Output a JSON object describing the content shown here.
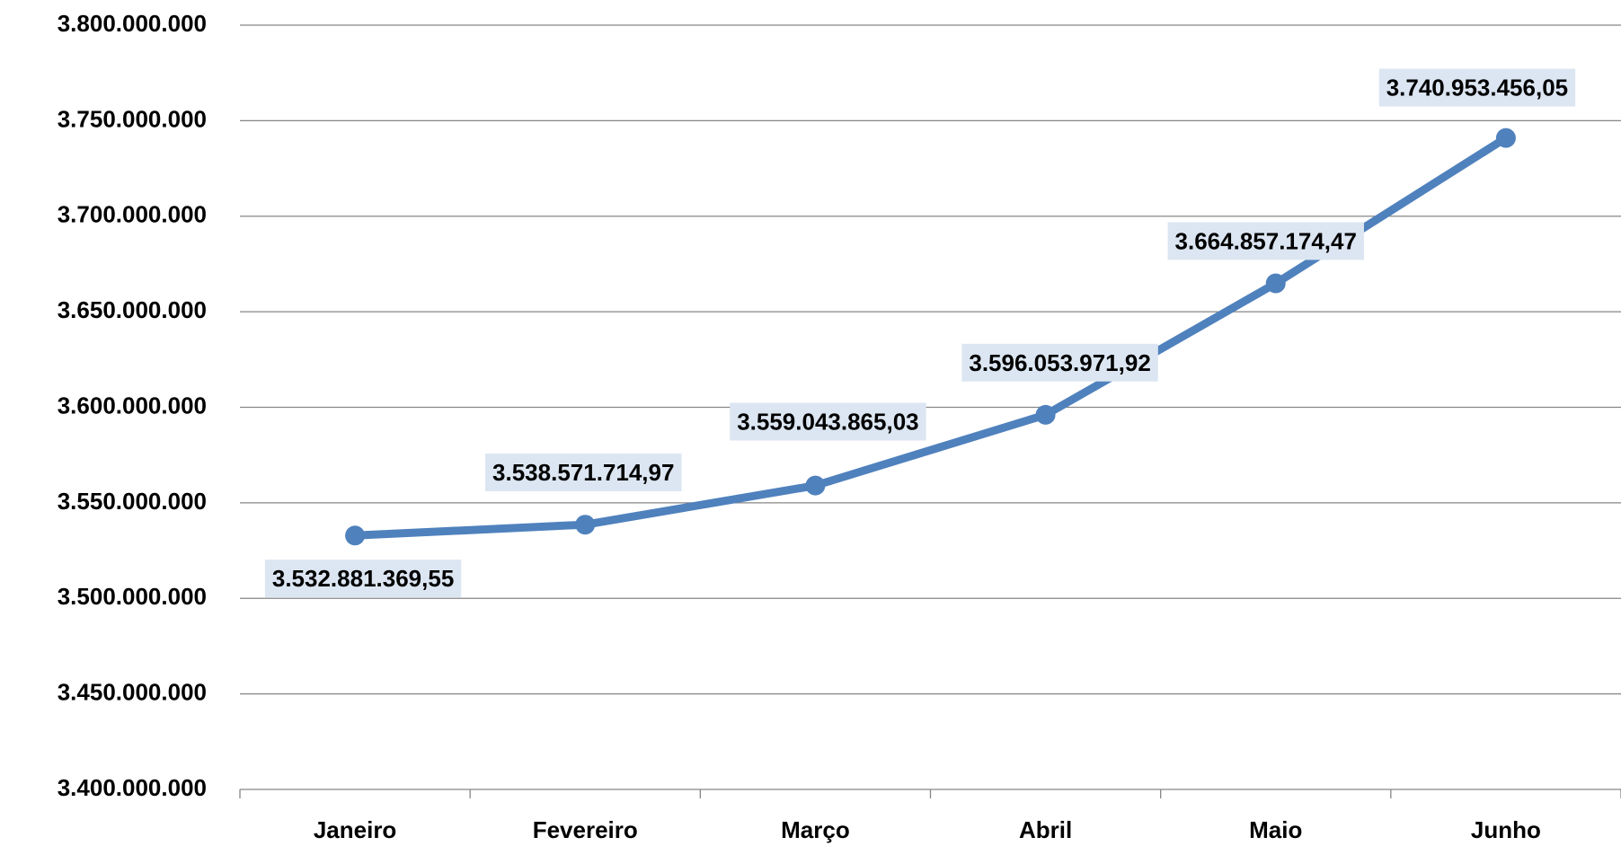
{
  "chart_data": {
    "type": "line",
    "categories": [
      "Janeiro",
      "Fevereiro",
      "Março",
      "Abril",
      "Maio",
      "Junho"
    ],
    "series": [
      {
        "color": "#4f81bd",
        "values": [
          3532881369.55,
          3538571714.97,
          3559043865.03,
          3596053971.92,
          3664857174.47,
          3740953456.05
        ],
        "value_labels": [
          "3.532.881.369,55",
          "3.538.571.714,97",
          "3.559.043.865,03",
          "3.596.053.971,92",
          "3.664.857.174,47",
          "3.740.953.456,05"
        ]
      }
    ],
    "ylim": [
      3400000000,
      3800000000
    ],
    "yticks": [
      {
        "value": 3400000000,
        "label": "3.400.000.000"
      },
      {
        "value": 3450000000,
        "label": "3.450.000.000"
      },
      {
        "value": 3500000000,
        "label": "3.500.000.000"
      },
      {
        "value": 3550000000,
        "label": "3.550.000.000"
      },
      {
        "value": 3600000000,
        "label": "3.600.000.000"
      },
      {
        "value": 3650000000,
        "label": "3.650.000.000"
      },
      {
        "value": 3700000000,
        "label": "3.700.000.000"
      },
      {
        "value": 3750000000,
        "label": "3.750.000.000"
      },
      {
        "value": 3800000000,
        "label": "3.800.000.000"
      }
    ],
    "grid": true,
    "label_background": "#dce6f2"
  }
}
